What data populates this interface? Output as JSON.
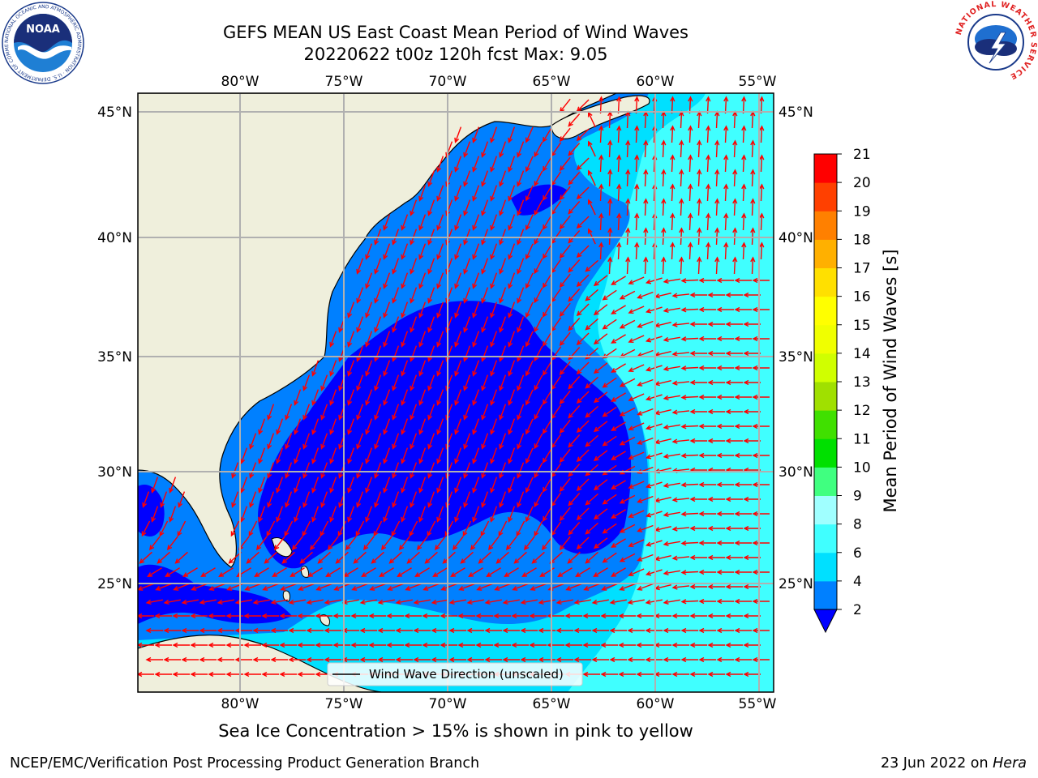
{
  "header": {
    "title_line1": "GEFS MEAN US East Coast Mean Period of Wind Waves",
    "title_line2": "20220622 t00z 120h fcst   Max: 9.05"
  },
  "map": {
    "lon_labels": [
      "80°W",
      "75°W",
      "70°W",
      "65°W",
      "60°W",
      "55°W"
    ],
    "lat_labels": [
      "45°N",
      "40°N",
      "35°N",
      "30°N",
      "25°N"
    ],
    "legend_label": "Wind Wave Direction (unscaled)",
    "arrow_color": "#ff0000",
    "land_color": "#efefdc"
  },
  "colorbar": {
    "label": "Mean Period of Wind Waves [s]",
    "ticks": [
      "2",
      "4",
      "6",
      "8",
      "9",
      "10",
      "11",
      "12",
      "13",
      "14",
      "15",
      "16",
      "17",
      "18",
      "19",
      "20",
      "21"
    ],
    "colors": [
      "#0000ff",
      "#0080ff",
      "#00e0ff",
      "#40ffff",
      "#a0ffff",
      "#40ff80",
      "#00e000",
      "#40e000",
      "#a0e000",
      "#d0ff00",
      "#f0ff00",
      "#ffff00",
      "#ffe000",
      "#ffb000",
      "#ff8000",
      "#ff4000",
      "#ff0000"
    ]
  },
  "caption": "Sea Ice Concentration > 15% is shown in pink to yellow",
  "footer": {
    "left": "NCEP/EMC/Verification Post Processing Product Generation Branch",
    "right_date": "23 Jun 2022 on ",
    "right_host": "Hera"
  },
  "logos": {
    "noaa": "NOAA",
    "noaa_ring": "NATIONAL OCEANIC AND ATMOSPHERIC ADMINISTRATION · U.S. DEPARTMENT OF COMMERCE",
    "nws_ring": "NATIONAL WEATHER SERVICE"
  }
}
